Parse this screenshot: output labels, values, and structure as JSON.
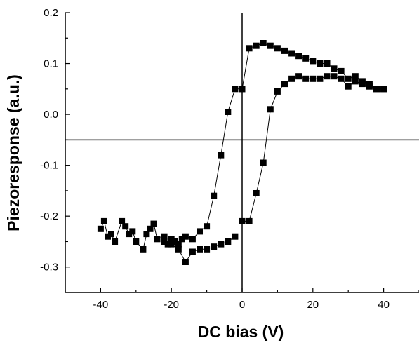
{
  "chart_data": {
    "type": "scatter",
    "title": "",
    "xlabel": "DC bias (V)",
    "ylabel": "Piezoresponse (a.u.)",
    "xlim": [
      -50,
      50
    ],
    "ylim": [
      -0.35,
      0.2
    ],
    "x_ticks": [
      -40,
      -20,
      0,
      20,
      40
    ],
    "y_ticks": [
      0.2,
      0.1,
      0.0,
      -0.1,
      -0.2,
      -0.3
    ],
    "x_tick_labels": [
      "-40",
      "-20",
      "0",
      "20",
      "40"
    ],
    "y_tick_labels": [
      "0.2",
      "0.1",
      "0.0",
      "-0.1",
      "-0.2",
      "-0.3"
    ],
    "reference_lines": {
      "vertical_x": 0,
      "horizontal_y": -0.05
    },
    "grid": false,
    "marker": "square",
    "series": [
      {
        "x": [
          -40,
          -39,
          -38,
          -37,
          -36,
          -34,
          -33,
          -32,
          -31,
          -30,
          -28,
          -27,
          -26,
          -25,
          -24,
          -22,
          -21,
          -20,
          -19,
          -18,
          -17,
          -16,
          -14,
          -12,
          -10,
          -8,
          -6,
          -4,
          -2,
          0
        ],
        "y": [
          -0.225,
          -0.21,
          -0.24,
          -0.235,
          -0.25,
          -0.21,
          -0.22,
          -0.235,
          -0.23,
          -0.25,
          -0.265,
          -0.235,
          -0.225,
          -0.215,
          -0.245,
          -0.24,
          -0.255,
          -0.245,
          -0.25,
          -0.255,
          -0.245,
          -0.24,
          -0.245,
          -0.23,
          -0.22,
          -0.16,
          -0.08,
          0.005,
          0.05,
          0.05
        ]
      },
      {
        "x": [
          0,
          2,
          4,
          6,
          8,
          10,
          12,
          14,
          16,
          18,
          20,
          22,
          24,
          26,
          28,
          30,
          32,
          34,
          36,
          38,
          40
        ],
        "y": [
          0.05,
          0.13,
          0.135,
          0.14,
          0.135,
          0.13,
          0.125,
          0.12,
          0.115,
          0.11,
          0.105,
          0.1,
          0.1,
          0.09,
          0.085,
          0.07,
          0.075,
          0.065,
          0.06,
          0.05,
          0.05
        ]
      },
      {
        "x": [
          40,
          38,
          36,
          34,
          32,
          30,
          28,
          26,
          24,
          22,
          20,
          18,
          16,
          14,
          12,
          10,
          8,
          6,
          4,
          2,
          0
        ],
        "y": [
          0.05,
          0.05,
          0.055,
          0.06,
          0.065,
          0.055,
          0.07,
          0.075,
          0.075,
          0.07,
          0.07,
          0.07,
          0.075,
          0.07,
          0.06,
          0.045,
          0.01,
          -0.095,
          -0.155,
          -0.21,
          -0.21
        ]
      },
      {
        "x": [
          -2,
          -4,
          -6,
          -8,
          -10,
          -12,
          -14,
          -16,
          -18,
          -20,
          -22
        ],
        "y": [
          -0.24,
          -0.25,
          -0.255,
          -0.26,
          -0.265,
          -0.265,
          -0.27,
          -0.29,
          -0.265,
          -0.255,
          -0.25
        ]
      }
    ]
  }
}
